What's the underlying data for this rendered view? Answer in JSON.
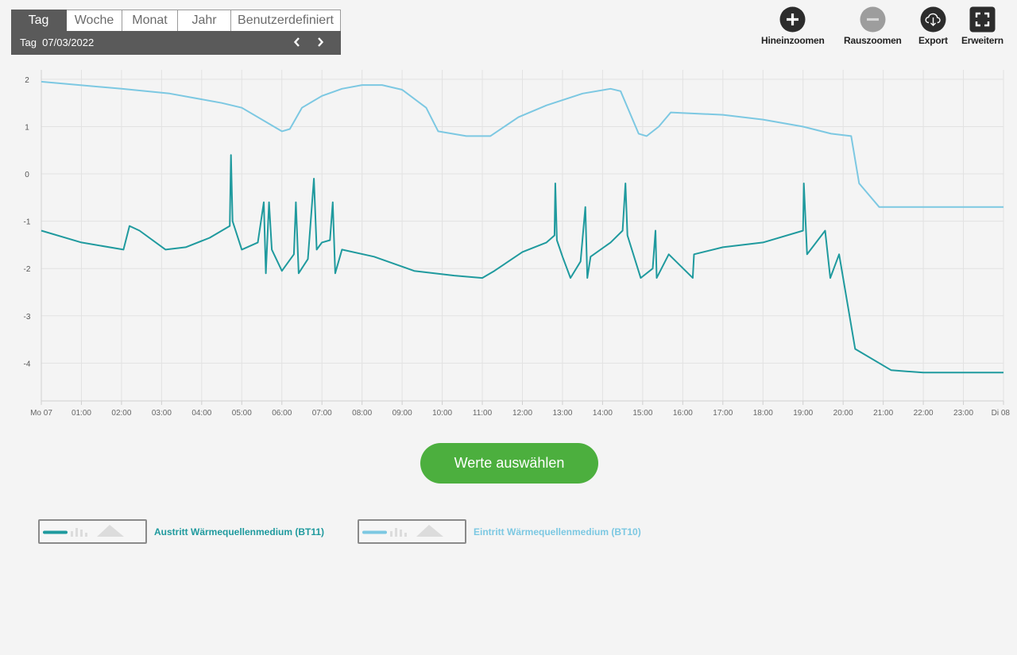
{
  "period": {
    "tabs": [
      "Tag",
      "Woche",
      "Monat",
      "Jahr",
      "Benutzerdefiniert"
    ],
    "active_tab": "Tag",
    "date_label": "Tag  07/03/2022"
  },
  "toolbar": {
    "zoom_in": "Hineinzoomen",
    "zoom_out": "Rauszoomen",
    "export": "Export",
    "expand": "Erweitern"
  },
  "select_button": "Werte auswählen",
  "legend": {
    "bt11": "Austritt Wärmequellenmedium (BT11)",
    "bt10": "Eintritt Wärmequellenmedium (BT10)"
  },
  "colors": {
    "bt11": "#1f9a9e",
    "bt10": "#7cc8e2",
    "button": "#4caf3e",
    "period_bg": "#5a5a5a"
  },
  "chart_data": {
    "type": "line",
    "x_unit": "hours",
    "xlim": [
      0,
      24
    ],
    "ylim": [
      -4.8,
      2.2
    ],
    "yticks": [
      2,
      1,
      0,
      -1,
      -2,
      -3,
      -4
    ],
    "xtick_labels": [
      "Mo 07",
      "01:00",
      "02:00",
      "03:00",
      "04:00",
      "05:00",
      "06:00",
      "07:00",
      "08:00",
      "09:00",
      "10:00",
      "11:00",
      "12:00",
      "13:00",
      "14:00",
      "15:00",
      "16:00",
      "17:00",
      "18:00",
      "19:00",
      "20:00",
      "21:00",
      "22:00",
      "23:00",
      "Di 08"
    ],
    "grid": true,
    "series": [
      {
        "name": "Austritt Wärmequellenmedium (BT11)",
        "points": [
          [
            0,
            -1.2
          ],
          [
            1,
            -1.45
          ],
          [
            2.05,
            -1.6
          ],
          [
            2.2,
            -1.1
          ],
          [
            2.45,
            -1.2
          ],
          [
            3.1,
            -1.6
          ],
          [
            3.6,
            -1.55
          ],
          [
            4.2,
            -1.35
          ],
          [
            4.7,
            -1.1
          ],
          [
            4.73,
            0.4
          ],
          [
            4.77,
            -1.0
          ],
          [
            5.0,
            -1.6
          ],
          [
            5.4,
            -1.45
          ],
          [
            5.55,
            -0.6
          ],
          [
            5.6,
            -2.1
          ],
          [
            5.68,
            -0.6
          ],
          [
            5.75,
            -1.6
          ],
          [
            6.0,
            -2.05
          ],
          [
            6.3,
            -1.7
          ],
          [
            6.35,
            -0.6
          ],
          [
            6.42,
            -2.1
          ],
          [
            6.65,
            -1.8
          ],
          [
            6.8,
            -0.1
          ],
          [
            6.87,
            -1.6
          ],
          [
            7.0,
            -1.45
          ],
          [
            7.2,
            -1.4
          ],
          [
            7.27,
            -0.6
          ],
          [
            7.33,
            -2.1
          ],
          [
            7.5,
            -1.6
          ],
          [
            8.3,
            -1.75
          ],
          [
            9.3,
            -2.05
          ],
          [
            10.3,
            -2.15
          ],
          [
            11.0,
            -2.2
          ],
          [
            11.3,
            -2.05
          ],
          [
            12.0,
            -1.65
          ],
          [
            12.6,
            -1.45
          ],
          [
            12.8,
            -1.3
          ],
          [
            12.82,
            -0.2
          ],
          [
            12.86,
            -1.4
          ],
          [
            13.0,
            -1.75
          ],
          [
            13.2,
            -2.2
          ],
          [
            13.45,
            -1.85
          ],
          [
            13.57,
            -0.7
          ],
          [
            13.62,
            -2.2
          ],
          [
            13.7,
            -1.75
          ],
          [
            14.2,
            -1.45
          ],
          [
            14.5,
            -1.2
          ],
          [
            14.57,
            -0.2
          ],
          [
            14.62,
            -1.3
          ],
          [
            14.95,
            -2.2
          ],
          [
            15.25,
            -2.0
          ],
          [
            15.32,
            -1.2
          ],
          [
            15.35,
            -2.2
          ],
          [
            15.65,
            -1.7
          ],
          [
            16.25,
            -2.2
          ],
          [
            16.28,
            -1.7
          ],
          [
            17.0,
            -1.55
          ],
          [
            18.0,
            -1.45
          ],
          [
            19.0,
            -1.2
          ],
          [
            19.02,
            -0.2
          ],
          [
            19.1,
            -1.7
          ],
          [
            19.55,
            -1.2
          ],
          [
            19.68,
            -2.2
          ],
          [
            19.9,
            -1.7
          ],
          [
            20.3,
            -3.7
          ],
          [
            21.2,
            -4.15
          ],
          [
            22.0,
            -4.2
          ],
          [
            24.0,
            -4.2
          ]
        ]
      },
      {
        "name": "Eintritt Wärmequellenmedium (BT10)",
        "points": [
          [
            0,
            1.95
          ],
          [
            2,
            1.8
          ],
          [
            3.2,
            1.7
          ],
          [
            4.5,
            1.5
          ],
          [
            5.0,
            1.4
          ],
          [
            5.6,
            1.1
          ],
          [
            6.0,
            0.9
          ],
          [
            6.2,
            0.95
          ],
          [
            6.5,
            1.4
          ],
          [
            7.0,
            1.65
          ],
          [
            7.5,
            1.8
          ],
          [
            8.0,
            1.88
          ],
          [
            8.5,
            1.88
          ],
          [
            9.0,
            1.78
          ],
          [
            9.6,
            1.4
          ],
          [
            9.9,
            0.9
          ],
          [
            10.6,
            0.8
          ],
          [
            11.2,
            0.8
          ],
          [
            11.9,
            1.2
          ],
          [
            12.6,
            1.45
          ],
          [
            13.5,
            1.7
          ],
          [
            14.2,
            1.8
          ],
          [
            14.45,
            1.75
          ],
          [
            14.9,
            0.85
          ],
          [
            15.1,
            0.8
          ],
          [
            15.4,
            1.0
          ],
          [
            15.7,
            1.3
          ],
          [
            17.0,
            1.25
          ],
          [
            18.0,
            1.15
          ],
          [
            19.0,
            1.0
          ],
          [
            19.7,
            0.85
          ],
          [
            20.2,
            0.8
          ],
          [
            20.4,
            -0.2
          ],
          [
            20.9,
            -0.7
          ],
          [
            24.0,
            -0.7
          ]
        ]
      }
    ]
  }
}
